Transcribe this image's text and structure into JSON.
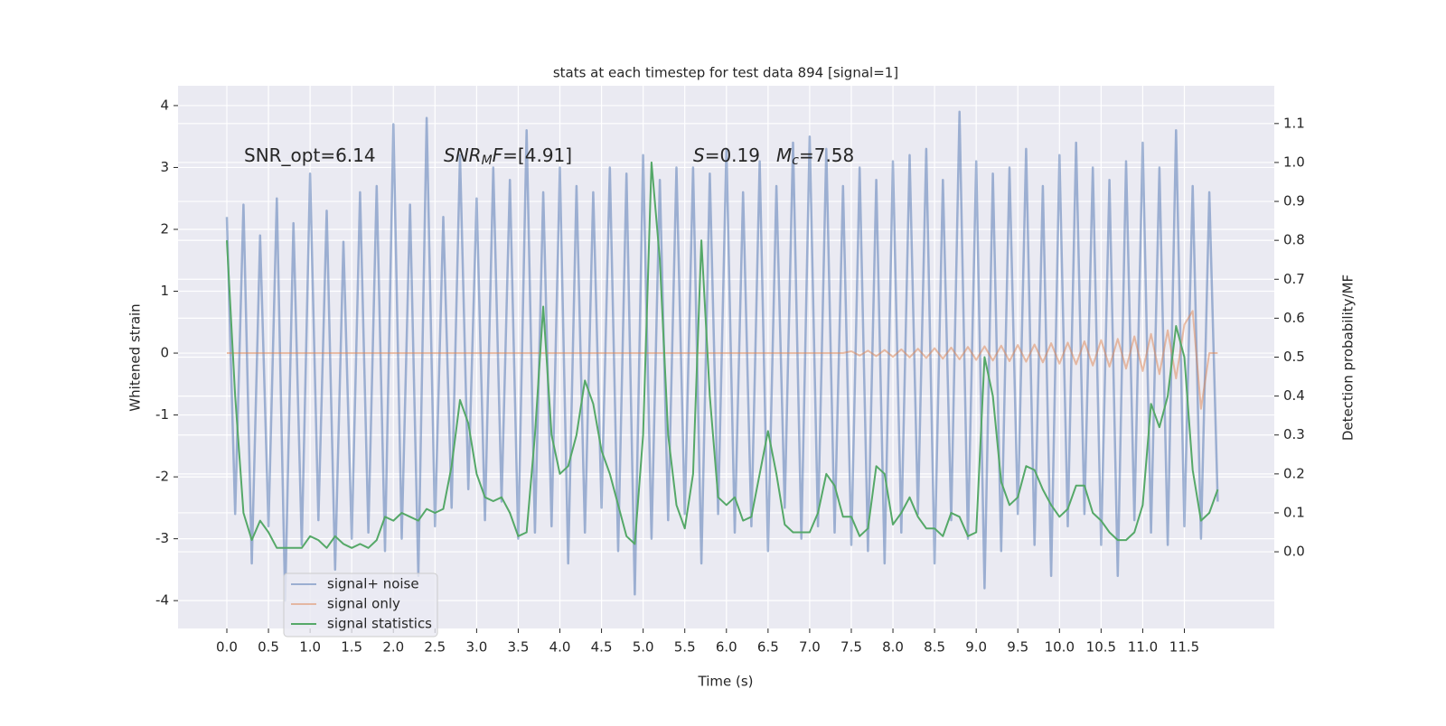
{
  "chart_data": {
    "type": "line",
    "title": "stats at each timestep for test data 894 [signal=1]",
    "xlabel": "Time (s)",
    "ylabel": "Whitened strain",
    "y2label": "Detection probability/MF",
    "annotations": [
      [
        {
          "text": "SNR_opt=6.14"
        }
      ],
      [
        {
          "text": "SNR",
          "italic": true
        },
        {
          "text": "M",
          "italic": true,
          "sub": true
        },
        {
          "text": "F",
          "italic": true
        },
        {
          "text": "=[4.91]"
        }
      ],
      [
        {
          "text": "S",
          "italic": true
        },
        {
          "text": "=0.19"
        }
      ],
      [
        {
          "text": "M",
          "italic": true
        },
        {
          "text": "c",
          "italic": true,
          "sub": true
        },
        {
          "text": "=7.58"
        }
      ]
    ],
    "x": [
      0.0,
      0.1,
      0.2,
      0.3,
      0.4,
      0.5,
      0.6,
      0.7,
      0.8,
      0.9,
      1.0,
      1.1,
      1.2,
      1.3,
      1.4,
      1.5,
      1.6,
      1.7,
      1.8,
      1.9,
      2.0,
      2.1,
      2.2,
      2.3,
      2.4,
      2.5,
      2.6,
      2.7,
      2.8,
      2.9,
      3.0,
      3.1,
      3.2,
      3.3,
      3.4,
      3.5,
      3.6,
      3.7,
      3.8,
      3.9,
      4.0,
      4.1,
      4.2,
      4.3,
      4.4,
      4.5,
      4.6,
      4.7,
      4.8,
      4.9,
      5.0,
      5.1,
      5.2,
      5.3,
      5.4,
      5.5,
      5.6,
      5.7,
      5.8,
      5.9,
      6.0,
      6.1,
      6.2,
      6.3,
      6.4,
      6.5,
      6.6,
      6.7,
      6.8,
      6.9,
      7.0,
      7.1,
      7.2,
      7.3,
      7.4,
      7.5,
      7.6,
      7.7,
      7.8,
      7.9,
      8.0,
      8.1,
      8.2,
      8.3,
      8.4,
      8.5,
      8.6,
      8.7,
      8.8,
      8.9,
      9.0,
      9.1,
      9.2,
      9.3,
      9.4,
      9.5,
      9.6,
      9.7,
      9.8,
      9.9,
      10.0,
      10.1,
      10.2,
      10.3,
      10.4,
      10.5,
      10.6,
      10.7,
      10.8,
      10.9,
      11.0,
      11.1,
      11.2,
      11.3,
      11.4,
      11.5,
      11.6,
      11.7,
      11.8,
      11.9
    ],
    "series": [
      {
        "name": "signal+ noise",
        "color": "#4c72b0",
        "values": [
          2.2,
          -2.6,
          2.4,
          -3.4,
          1.9,
          -2.8,
          2.5,
          -4.0,
          2.1,
          -3.1,
          2.9,
          -2.7,
          2.3,
          -3.5,
          1.8,
          -3.0,
          2.6,
          -2.9,
          2.7,
          -3.2,
          3.7,
          -3.0,
          2.4,
          -3.6,
          3.8,
          -2.8,
          2.2,
          -2.5,
          3.2,
          -2.2,
          2.5,
          -2.7,
          3.0,
          -2.4,
          2.8,
          -3.0,
          3.6,
          -2.9,
          2.6,
          -2.8,
          3.0,
          -3.4,
          2.7,
          -2.9,
          2.6,
          -2.5,
          3.0,
          -3.2,
          2.9,
          -3.9,
          3.2,
          -3.0,
          2.8,
          -2.7,
          3.0,
          -2.6,
          3.0,
          -3.4,
          2.9,
          -2.6,
          3.3,
          -2.9,
          2.6,
          -2.8,
          3.1,
          -3.2,
          2.7,
          -2.5,
          3.4,
          -3.0,
          3.5,
          -2.8,
          3.3,
          -2.9,
          2.7,
          -3.1,
          3.0,
          -3.2,
          2.8,
          -3.4,
          3.1,
          -2.9,
          3.2,
          -2.6,
          3.3,
          -3.4,
          2.8,
          -2.7,
          3.9,
          -3.0,
          3.1,
          -3.8,
          2.9,
          -3.2,
          3.0,
          -2.6,
          3.3,
          -3.1,
          2.7,
          -3.6,
          3.2,
          -2.8,
          3.4,
          -2.6,
          3.0,
          -3.1,
          2.8,
          -3.6,
          3.1,
          -2.7,
          3.4,
          -2.9,
          3.0,
          -3.1,
          3.6,
          -2.8,
          2.7,
          -3.0,
          2.6,
          -2.4
        ]
      },
      {
        "name": "signal only",
        "color": "#dd8452",
        "values": [
          0,
          0,
          0,
          0,
          0,
          0,
          0,
          0,
          0,
          0,
          0,
          0,
          0,
          0,
          0,
          0,
          0,
          0,
          0,
          0,
          0,
          0,
          0,
          0,
          0,
          0,
          0,
          0,
          0,
          0,
          0,
          0,
          0,
          0,
          0,
          0,
          0,
          0,
          0,
          0,
          0,
          0,
          0,
          0,
          0,
          0,
          0,
          0,
          0,
          0,
          0,
          0,
          0,
          0,
          0,
          0,
          0,
          0,
          0,
          0,
          0,
          0,
          0,
          0,
          0,
          0,
          0,
          0,
          0,
          0,
          0,
          0,
          0,
          0,
          0,
          0.03,
          -0.04,
          0.04,
          -0.05,
          0.05,
          -0.06,
          0.06,
          -0.07,
          0.07,
          -0.08,
          0.08,
          -0.09,
          0.09,
          -0.1,
          0.1,
          -0.11,
          0.11,
          -0.12,
          0.12,
          -0.13,
          0.13,
          -0.14,
          0.14,
          -0.15,
          0.16,
          -0.17,
          0.17,
          -0.18,
          0.19,
          -0.2,
          0.21,
          -0.22,
          0.23,
          -0.25,
          0.27,
          -0.29,
          0.31,
          -0.34,
          0.37,
          -0.41,
          0.46,
          0.68,
          -0.9,
          0,
          0
        ]
      },
      {
        "name": "signal statistics",
        "color": "#55a868",
        "axis": "y2",
        "values": [
          0.8,
          0.4,
          0.1,
          0.03,
          0.08,
          0.05,
          0.01,
          0.01,
          0.01,
          0.01,
          0.04,
          0.03,
          0.01,
          0.04,
          0.02,
          0.01,
          0.02,
          0.01,
          0.03,
          0.09,
          0.08,
          0.1,
          0.09,
          0.08,
          0.11,
          0.1,
          0.11,
          0.22,
          0.39,
          0.33,
          0.2,
          0.14,
          0.13,
          0.14,
          0.1,
          0.04,
          0.05,
          0.3,
          0.63,
          0.3,
          0.2,
          0.22,
          0.3,
          0.44,
          0.38,
          0.26,
          0.2,
          0.12,
          0.04,
          0.02,
          0.3,
          1.0,
          0.75,
          0.3,
          0.12,
          0.06,
          0.2,
          0.8,
          0.4,
          0.14,
          0.12,
          0.14,
          0.08,
          0.09,
          0.2,
          0.31,
          0.2,
          0.07,
          0.05,
          0.05,
          0.05,
          0.1,
          0.2,
          0.17,
          0.09,
          0.09,
          0.04,
          0.06,
          0.22,
          0.2,
          0.07,
          0.1,
          0.14,
          0.09,
          0.06,
          0.06,
          0.04,
          0.1,
          0.09,
          0.04,
          0.05,
          0.5,
          0.4,
          0.18,
          0.12,
          0.14,
          0.22,
          0.21,
          0.16,
          0.12,
          0.09,
          0.11,
          0.17,
          0.17,
          0.1,
          0.08,
          0.05,
          0.03,
          0.03,
          0.05,
          0.12,
          0.38,
          0.32,
          0.4,
          0.58,
          0.5,
          0.21,
          0.08,
          0.1,
          0.16
        ]
      }
    ],
    "xlim": [
      -0.586,
      12.58
    ],
    "xticks": [
      {
        "value": 0,
        "label": "0.0"
      },
      0.5,
      {
        "value": 1,
        "label": "1.0"
      },
      1.5,
      {
        "value": 2,
        "label": "2.0"
      },
      2.5,
      {
        "value": 3,
        "label": "3.0"
      },
      3.5,
      {
        "value": 4,
        "label": "4.0"
      },
      4.5,
      {
        "value": 5,
        "label": "5.0"
      },
      5.5,
      {
        "value": 6,
        "label": "6.0"
      },
      6.5,
      {
        "value": 7,
        "label": "7.0"
      },
      7.5,
      {
        "value": 8,
        "label": "8.0"
      },
      8.5,
      {
        "value": 9,
        "label": "9.0"
      },
      9.5,
      {
        "value": 10,
        "label": "10.0"
      },
      10.5,
      {
        "value": 11,
        "label": "11.0"
      },
      11.5
    ],
    "ylim": [
      -4.45,
      4.32
    ],
    "yticks": [
      -4,
      -3,
      -2,
      -1,
      0,
      1,
      2,
      3,
      4
    ],
    "y2lim": [
      -0.197,
      1.197
    ],
    "y2ticks": [
      {
        "value": 0,
        "label": "0.0"
      },
      0.1,
      0.2,
      0.3,
      0.4,
      0.5,
      0.6,
      0.7,
      0.8,
      0.9,
      {
        "value": 1,
        "label": "1.0"
      },
      1.1
    ],
    "grid": true,
    "legend": "lower left",
    "background": "#eaeaf2"
  }
}
